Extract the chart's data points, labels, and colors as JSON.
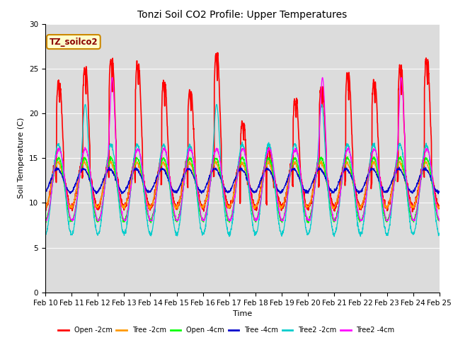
{
  "title": "Tonzi Soil CO2 Profile: Upper Temperatures",
  "xlabel": "Time",
  "ylabel": "Soil Temperature (C)",
  "ylim": [
    0,
    30
  ],
  "annotation_text": "TZ_soilco2",
  "annotation_bg": "#ffffcc",
  "annotation_border": "#cc8800",
  "xtick_labels": [
    "Feb 10",
    "Feb 11",
    "Feb 12",
    "Feb 13",
    "Feb 14",
    "Feb 15",
    "Feb 16",
    "Feb 17",
    "Feb 18",
    "Feb 19",
    "Feb 20",
    "Feb 21",
    "Feb 22",
    "Feb 23",
    "Feb 24",
    "Feb 25"
  ],
  "series": [
    {
      "label": "Open -2cm",
      "color": "#ff0000"
    },
    {
      "label": "Tree -2cm",
      "color": "#ff9900"
    },
    {
      "label": "Open -4cm",
      "color": "#00ff00"
    },
    {
      "label": "Tree -4cm",
      "color": "#0000cc"
    },
    {
      "label": "Tree2 -2cm",
      "color": "#00cccc"
    },
    {
      "label": "Tree2 -4cm",
      "color": "#ff00ff"
    }
  ]
}
